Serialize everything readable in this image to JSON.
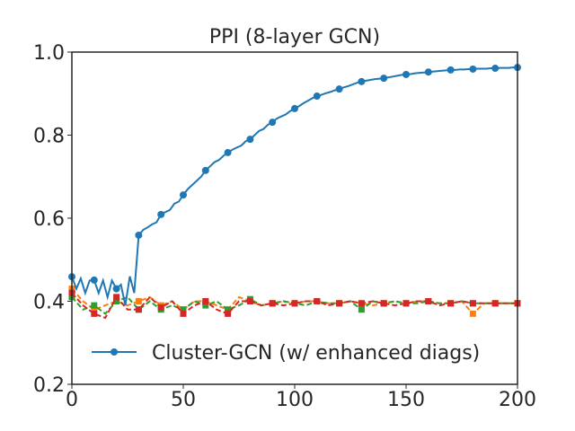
{
  "chart_data": {
    "type": "line",
    "title": "PPI (8-layer GCN)",
    "xlabel": "",
    "ylabel": "",
    "xlim": [
      0,
      200
    ],
    "ylim": [
      0.2,
      1.0
    ],
    "xticks": [
      "0",
      "50",
      "100",
      "150",
      "200"
    ],
    "yticks": [
      "0.2",
      "0.4",
      "0.6",
      "0.8",
      "1.0"
    ],
    "grid": false,
    "legend_position": "lower-right",
    "series": [
      {
        "name": "Cluster-GCN (w/ enhanced diags)",
        "color": "#1f77b4",
        "style": "solid",
        "marker": "circle",
        "marker_every": 10,
        "x": [
          0,
          2,
          4,
          6,
          8,
          10,
          12,
          14,
          16,
          18,
          20,
          22,
          24,
          26,
          28,
          30,
          32,
          34,
          36,
          38,
          40,
          42,
          44,
          46,
          48,
          50,
          52,
          54,
          56,
          58,
          60,
          62,
          64,
          66,
          68,
          70,
          72,
          74,
          76,
          78,
          80,
          82,
          84,
          86,
          88,
          90,
          92,
          94,
          96,
          98,
          100,
          102,
          104,
          106,
          108,
          110,
          112,
          114,
          116,
          118,
          120,
          122,
          124,
          126,
          128,
          130,
          132,
          134,
          136,
          138,
          140,
          142,
          144,
          146,
          148,
          150,
          152,
          154,
          156,
          158,
          160,
          162,
          164,
          166,
          168,
          170,
          172,
          174,
          176,
          178,
          180,
          182,
          184,
          186,
          188,
          190,
          192,
          194,
          196,
          198,
          200
        ],
        "y": [
          0.459,
          0.43,
          0.455,
          0.42,
          0.45,
          0.451,
          0.42,
          0.45,
          0.41,
          0.45,
          0.43,
          0.44,
          0.39,
          0.46,
          0.42,
          0.559,
          0.572,
          0.578,
          0.585,
          0.59,
          0.609,
          0.615,
          0.62,
          0.635,
          0.64,
          0.656,
          0.67,
          0.68,
          0.69,
          0.7,
          0.715,
          0.725,
          0.735,
          0.74,
          0.75,
          0.758,
          0.765,
          0.77,
          0.775,
          0.785,
          0.79,
          0.8,
          0.81,
          0.815,
          0.825,
          0.831,
          0.84,
          0.845,
          0.85,
          0.858,
          0.864,
          0.87,
          0.877,
          0.883,
          0.889,
          0.894,
          0.897,
          0.901,
          0.904,
          0.908,
          0.911,
          0.915,
          0.918,
          0.922,
          0.926,
          0.929,
          0.931,
          0.933,
          0.935,
          0.936,
          0.937,
          0.939,
          0.941,
          0.943,
          0.945,
          0.946,
          0.947,
          0.949,
          0.95,
          0.951,
          0.952,
          0.953,
          0.954,
          0.955,
          0.956,
          0.957,
          0.957,
          0.958,
          0.958,
          0.959,
          0.959,
          0.96,
          0.96,
          0.96,
          0.961,
          0.961,
          0.962,
          0.962,
          0.962,
          0.963,
          0.963
        ]
      },
      {
        "color": "#ff7f0e",
        "style": "dashed",
        "marker": "square",
        "marker_every": 10,
        "x": [
          0,
          5,
          10,
          15,
          20,
          25,
          30,
          35,
          40,
          45,
          50,
          55,
          60,
          65,
          70,
          75,
          80,
          85,
          90,
          95,
          100,
          105,
          110,
          115,
          120,
          125,
          130,
          135,
          140,
          145,
          150,
          155,
          160,
          165,
          170,
          175,
          180,
          185,
          190,
          195,
          200
        ],
        "y": [
          0.43,
          0.4,
          0.38,
          0.39,
          0.4,
          0.39,
          0.4,
          0.41,
          0.39,
          0.4,
          0.38,
          0.4,
          0.4,
          0.39,
          0.38,
          0.41,
          0.4,
          0.39,
          0.395,
          0.4,
          0.395,
          0.4,
          0.4,
          0.395,
          0.395,
          0.4,
          0.395,
          0.39,
          0.395,
          0.4,
          0.395,
          0.4,
          0.4,
          0.395,
          0.395,
          0.4,
          0.37,
          0.395,
          0.395,
          0.395,
          0.395
        ]
      },
      {
        "color": "#2ca02c",
        "style": "dashed",
        "marker": "square",
        "marker_every": 10,
        "x": [
          0,
          5,
          10,
          15,
          20,
          25,
          30,
          35,
          40,
          45,
          50,
          55,
          60,
          65,
          70,
          75,
          80,
          85,
          90,
          95,
          100,
          105,
          110,
          115,
          120,
          125,
          130,
          135,
          140,
          145,
          150,
          155,
          160,
          165,
          170,
          175,
          180,
          185,
          190,
          195,
          200
        ],
        "y": [
          0.41,
          0.38,
          0.39,
          0.37,
          0.4,
          0.41,
          0.38,
          0.4,
          0.38,
          0.39,
          0.38,
          0.4,
          0.39,
          0.4,
          0.38,
          0.39,
          0.405,
          0.39,
          0.395,
          0.4,
          0.395,
          0.39,
          0.4,
          0.395,
          0.395,
          0.4,
          0.38,
          0.4,
          0.395,
          0.4,
          0.395,
          0.395,
          0.4,
          0.395,
          0.395,
          0.4,
          0.395,
          0.395,
          0.395,
          0.395,
          0.395
        ]
      },
      {
        "color": "#d62728",
        "style": "dashed",
        "marker": "square",
        "marker_every": 10,
        "x": [
          0,
          5,
          10,
          15,
          20,
          25,
          30,
          35,
          40,
          45,
          50,
          55,
          60,
          65,
          70,
          75,
          80,
          85,
          90,
          95,
          100,
          105,
          110,
          115,
          120,
          125,
          130,
          135,
          140,
          145,
          150,
          155,
          160,
          165,
          170,
          175,
          180,
          185,
          190,
          195,
          200
        ],
        "y": [
          0.42,
          0.39,
          0.37,
          0.36,
          0.41,
          0.38,
          0.38,
          0.41,
          0.385,
          0.4,
          0.37,
          0.39,
          0.4,
          0.38,
          0.37,
          0.4,
          0.4,
          0.39,
          0.395,
          0.39,
          0.395,
          0.4,
          0.4,
          0.39,
          0.395,
          0.4,
          0.395,
          0.4,
          0.395,
          0.39,
          0.395,
          0.4,
          0.4,
          0.39,
          0.395,
          0.4,
          0.395,
          0.395,
          0.395,
          0.395,
          0.395
        ]
      }
    ]
  }
}
